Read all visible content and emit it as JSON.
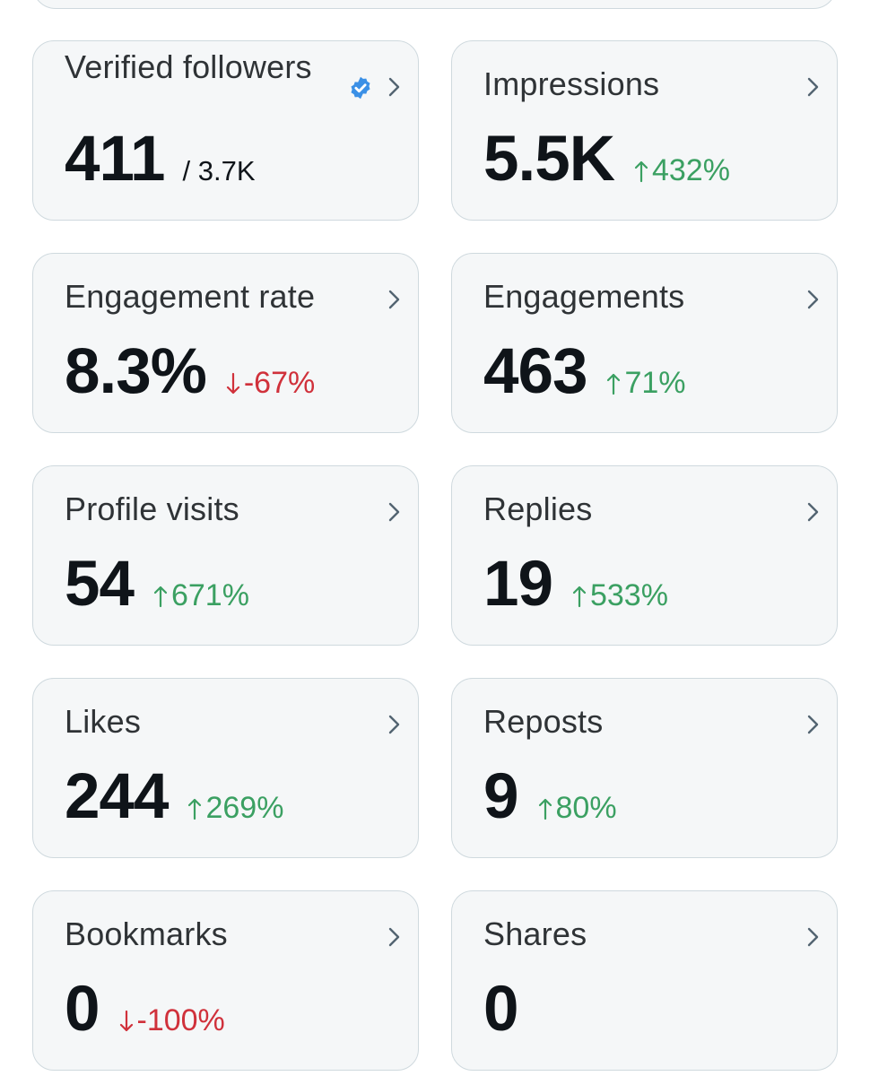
{
  "colors": {
    "card_bg": "#f5f7f8",
    "card_border": "#cfd9de",
    "text_primary": "#0f1419",
    "text_secondary": "#2f3336",
    "positive": "#3ba062",
    "negative": "#d0313b",
    "verified": "#3b90e6"
  },
  "cards": [
    {
      "title": "Verified followers",
      "value": "411",
      "sub": "/ 3.7K",
      "change": "",
      "direction": "none",
      "verified_icon": "verified-badge-icon"
    },
    {
      "title": "Impressions",
      "value": "5.5K",
      "sub": "",
      "change": "432%",
      "direction": "up"
    },
    {
      "title": "Engagement rate",
      "value": "8.3%",
      "sub": "",
      "change": "-67%",
      "direction": "down"
    },
    {
      "title": "Engagements",
      "value": "463",
      "sub": "",
      "change": "71%",
      "direction": "up"
    },
    {
      "title": "Profile visits",
      "value": "54",
      "sub": "",
      "change": "671%",
      "direction": "up"
    },
    {
      "title": "Replies",
      "value": "19",
      "sub": "",
      "change": "533%",
      "direction": "up"
    },
    {
      "title": "Likes",
      "value": "244",
      "sub": "",
      "change": "269%",
      "direction": "up"
    },
    {
      "title": "Reposts",
      "value": "9",
      "sub": "",
      "change": "80%",
      "direction": "up"
    },
    {
      "title": "Bookmarks",
      "value": "0",
      "sub": "",
      "change": "-100%",
      "direction": "down"
    },
    {
      "title": "Shares",
      "value": "0",
      "sub": "",
      "change": "",
      "direction": "none"
    }
  ],
  "icons": {
    "chevron": "chevron-right-icon",
    "arrow_up": "arrow-up-icon",
    "arrow_down": "arrow-down-icon"
  }
}
